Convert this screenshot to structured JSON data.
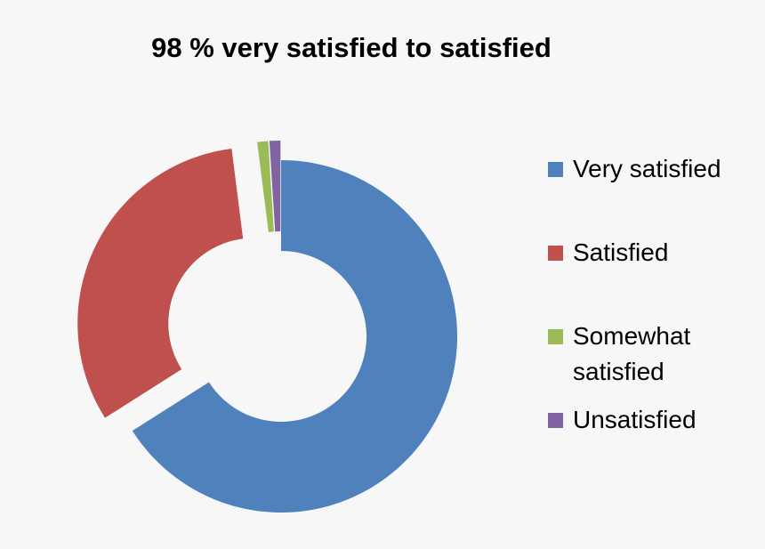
{
  "chart_data": {
    "type": "pie",
    "variant": "donut",
    "exploded": true,
    "title": "98 % very satisfied to satisfied",
    "categories": [
      "Very satisfied",
      "Satisfied",
      "Somewhat satisfied",
      "Unsatisfied"
    ],
    "values": [
      66,
      32,
      1,
      1
    ],
    "colors": [
      "#4f81bd",
      "#c0504d",
      "#9bbb59",
      "#8064a2"
    ],
    "legend_position": "right",
    "data_labels": false
  }
}
